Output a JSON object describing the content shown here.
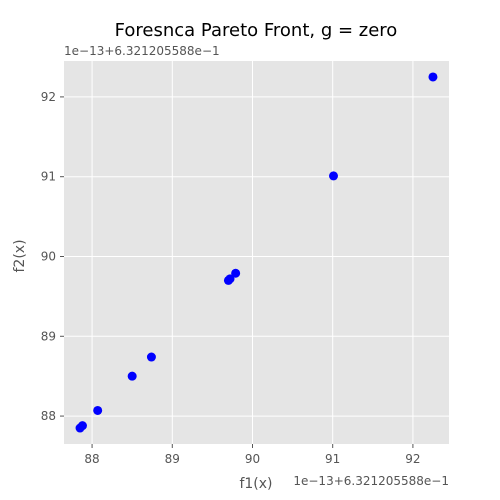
{
  "chart_data": {
    "type": "scatter",
    "title": "Foresnca Pareto Front,  g = zero",
    "xlabel": "f1(x)",
    "ylabel": "f2(x)",
    "x_offset_label": "1e−13+6.321205588e−1",
    "y_offset_label": "1e−13+6.321205588e−1",
    "xlim": [
      87.65,
      92.45
    ],
    "ylim": [
      87.65,
      92.45
    ],
    "x_ticks": [
      88,
      89,
      90,
      91,
      92
    ],
    "y_ticks": [
      88,
      89,
      90,
      91,
      92
    ],
    "grid": true,
    "point_color": "#0000ff",
    "background_color": "#e5e5e5",
    "grid_color": "#ffffff",
    "points": [
      {
        "x": 87.85,
        "y": 87.85
      },
      {
        "x": 87.88,
        "y": 87.88
      },
      {
        "x": 88.07,
        "y": 88.07
      },
      {
        "x": 88.5,
        "y": 88.5
      },
      {
        "x": 88.74,
        "y": 88.74
      },
      {
        "x": 89.7,
        "y": 89.7
      },
      {
        "x": 89.72,
        "y": 89.72
      },
      {
        "x": 89.79,
        "y": 89.79
      },
      {
        "x": 91.01,
        "y": 91.01
      },
      {
        "x": 92.25,
        "y": 92.25
      }
    ]
  }
}
